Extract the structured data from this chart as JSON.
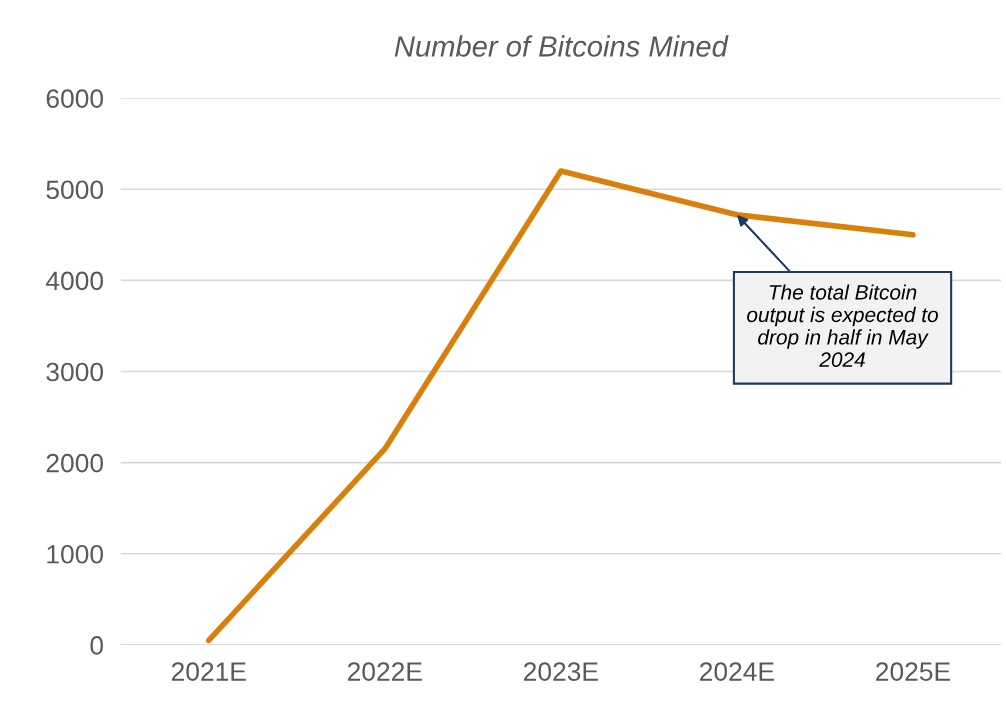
{
  "chart_data": {
    "type": "line",
    "title": "Number of Bitcoins Mined",
    "categories": [
      "2021E",
      "2022E",
      "2023E",
      "2024E",
      "2025E"
    ],
    "series": [
      {
        "color": "#d9800b",
        "values": [
          50,
          2150,
          5200,
          4720,
          4500
        ]
      }
    ],
    "ylim": [
      0,
      6000
    ],
    "yticks": [
      0,
      1000,
      2000,
      3000,
      4000,
      5000,
      6000
    ],
    "grid": "y",
    "annotations": [
      {
        "text": "The total Bitcoin\noutput is expected to\ndrop in half in May\n2024",
        "x": "2024E",
        "y": 4720
      }
    ]
  }
}
